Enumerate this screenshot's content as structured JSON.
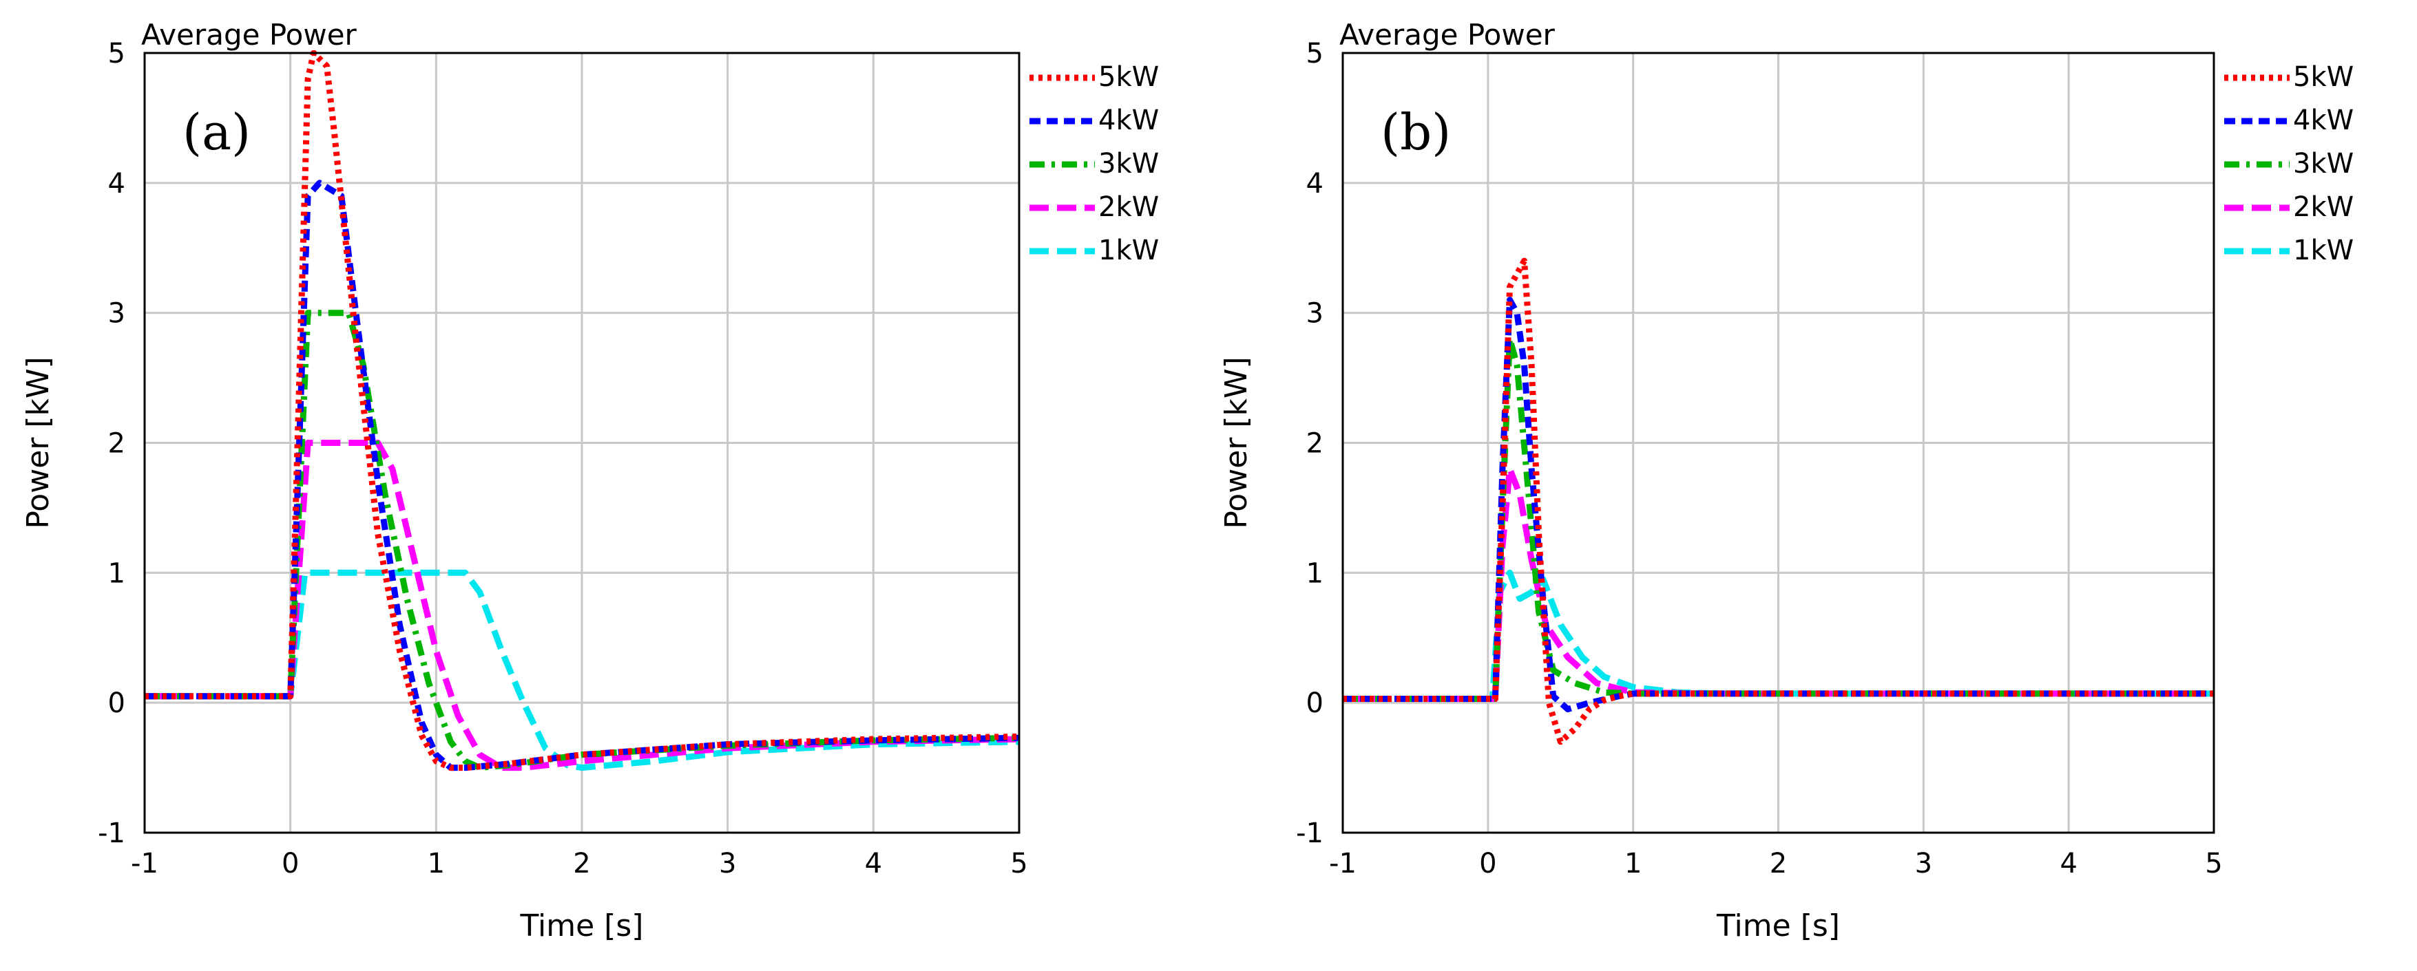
{
  "figure": {
    "panels": [
      "(a)",
      "(b)"
    ]
  },
  "chart_data": [
    {
      "type": "line",
      "panel_label": "(a)",
      "title": "Average Power",
      "xlabel": "Time [s]",
      "ylabel": "Power [kW]",
      "xlim": [
        -1,
        5
      ],
      "ylim": [
        -1,
        5
      ],
      "xticks": [
        "-1",
        "0",
        "1",
        "2",
        "3",
        "4",
        "5"
      ],
      "yticks": [
        "-1",
        "0",
        "1",
        "2",
        "3",
        "4",
        "5"
      ],
      "grid": true,
      "legend_position": "right",
      "series": [
        {
          "name": "5kW",
          "color": "#ff0000",
          "dash": "dotted",
          "x": [
            -1,
            0,
            0.12,
            0.16,
            0.25,
            0.3,
            0.45,
            0.6,
            0.75,
            0.9,
            1.0,
            1.1,
            1.2,
            1.5,
            2,
            3,
            4,
            5
          ],
          "y": [
            0.05,
            0.05,
            4.8,
            5.0,
            4.9,
            4.4,
            2.8,
            1.3,
            0.4,
            -0.25,
            -0.45,
            -0.5,
            -0.5,
            -0.47,
            -0.4,
            -0.32,
            -0.28,
            -0.26
          ]
        },
        {
          "name": "4kW",
          "color": "#0000ff",
          "dash": "dashed",
          "x": [
            -1,
            0,
            0.12,
            0.2,
            0.35,
            0.45,
            0.6,
            0.75,
            0.9,
            1.0,
            1.1,
            1.2,
            1.5,
            2,
            3,
            4,
            5
          ],
          "y": [
            0.05,
            0.05,
            3.9,
            4.0,
            3.9,
            3.0,
            1.7,
            0.6,
            -0.15,
            -0.4,
            -0.5,
            -0.5,
            -0.47,
            -0.4,
            -0.32,
            -0.29,
            -0.27
          ]
        },
        {
          "name": "3kW",
          "color": "#00b400",
          "dash": "dashdot",
          "x": [
            -1,
            0,
            0.12,
            0.4,
            0.5,
            0.65,
            0.8,
            0.95,
            1.1,
            1.2,
            1.3,
            1.5,
            2,
            3,
            4,
            5
          ],
          "y": [
            0.05,
            0.05,
            3.0,
            3.0,
            2.6,
            1.6,
            0.8,
            0.15,
            -0.3,
            -0.45,
            -0.5,
            -0.48,
            -0.4,
            -0.33,
            -0.29,
            -0.27
          ]
        },
        {
          "name": "2kW",
          "color": "#ff00ff",
          "dash": "longdash",
          "x": [
            -1,
            0,
            0.12,
            0.6,
            0.7,
            0.85,
            1.0,
            1.15,
            1.3,
            1.45,
            1.6,
            2,
            3,
            4,
            5
          ],
          "y": [
            0.05,
            0.05,
            2.0,
            2.0,
            1.8,
            1.1,
            0.4,
            -0.1,
            -0.4,
            -0.5,
            -0.5,
            -0.45,
            -0.35,
            -0.3,
            -0.28
          ]
        },
        {
          "name": "1kW",
          "color": "#00e5ee",
          "dash": "longdash",
          "x": [
            -1,
            0,
            0.1,
            1.2,
            1.3,
            1.45,
            1.6,
            1.75,
            1.9,
            2.0,
            2.5,
            3,
            4,
            5
          ],
          "y": [
            0.05,
            0.05,
            1.0,
            1.0,
            0.85,
            0.4,
            0.0,
            -0.35,
            -0.48,
            -0.5,
            -0.45,
            -0.38,
            -0.32,
            -0.3
          ]
        }
      ]
    },
    {
      "type": "line",
      "panel_label": "(b)",
      "title": "Average Power",
      "xlabel": "Time [s]",
      "ylabel": "Power [kW]",
      "xlim": [
        -1,
        5
      ],
      "ylim": [
        -1,
        5
      ],
      "xticks": [
        "-1",
        "0",
        "1",
        "2",
        "3",
        "4",
        "5"
      ],
      "yticks": [
        "-1",
        "0",
        "1",
        "2",
        "3",
        "4",
        "5"
      ],
      "grid": true,
      "legend_position": "right",
      "series": [
        {
          "name": "5kW",
          "color": "#ff0000",
          "dash": "dotted",
          "x": [
            -1,
            0.05,
            0.1,
            0.15,
            0.2,
            0.25,
            0.3,
            0.35,
            0.42,
            0.5,
            0.6,
            0.7,
            0.8,
            0.9,
            1.0,
            1.5,
            2,
            5
          ],
          "y": [
            0.03,
            0.03,
            1.5,
            3.2,
            3.3,
            3.4,
            2.6,
            1.3,
            0.0,
            -0.3,
            -0.2,
            -0.05,
            0.02,
            0.05,
            0.07,
            0.07,
            0.07,
            0.07
          ]
        },
        {
          "name": "4kW",
          "color": "#0000ff",
          "dash": "dashed",
          "x": [
            -1,
            0.05,
            0.1,
            0.15,
            0.2,
            0.25,
            0.3,
            0.38,
            0.45,
            0.55,
            0.7,
            0.9,
            1.0,
            1.5,
            5
          ],
          "y": [
            0.03,
            0.03,
            1.8,
            3.1,
            3.0,
            2.6,
            1.8,
            0.8,
            0.05,
            -0.05,
            0.0,
            0.05,
            0.07,
            0.07,
            0.07
          ]
        },
        {
          "name": "3kW",
          "color": "#00b400",
          "dash": "dashdot",
          "x": [
            -1,
            0.05,
            0.1,
            0.15,
            0.2,
            0.28,
            0.35,
            0.45,
            0.6,
            0.8,
            1.0,
            1.5,
            5
          ],
          "y": [
            0.03,
            0.03,
            1.5,
            2.8,
            2.6,
            1.6,
            0.7,
            0.25,
            0.15,
            0.08,
            0.07,
            0.07,
            0.07
          ]
        },
        {
          "name": "2kW",
          "color": "#ff00ff",
          "dash": "longdash",
          "x": [
            -1,
            0.05,
            0.1,
            0.15,
            0.22,
            0.3,
            0.4,
            0.55,
            0.75,
            1.0,
            1.5,
            5
          ],
          "y": [
            0.03,
            0.03,
            1.2,
            1.8,
            1.6,
            1.1,
            0.6,
            0.35,
            0.15,
            0.08,
            0.07,
            0.07
          ]
        },
        {
          "name": "1kW",
          "color": "#00e5ee",
          "dash": "longdash",
          "x": [
            -1,
            0.03,
            0.08,
            0.15,
            0.22,
            0.3,
            0.38,
            0.5,
            0.65,
            0.8,
            1.0,
            1.3,
            1.6,
            5
          ],
          "y": [
            0.03,
            0.03,
            0.85,
            1.0,
            0.8,
            0.85,
            0.95,
            0.6,
            0.35,
            0.2,
            0.12,
            0.08,
            0.07,
            0.07
          ]
        }
      ]
    }
  ]
}
